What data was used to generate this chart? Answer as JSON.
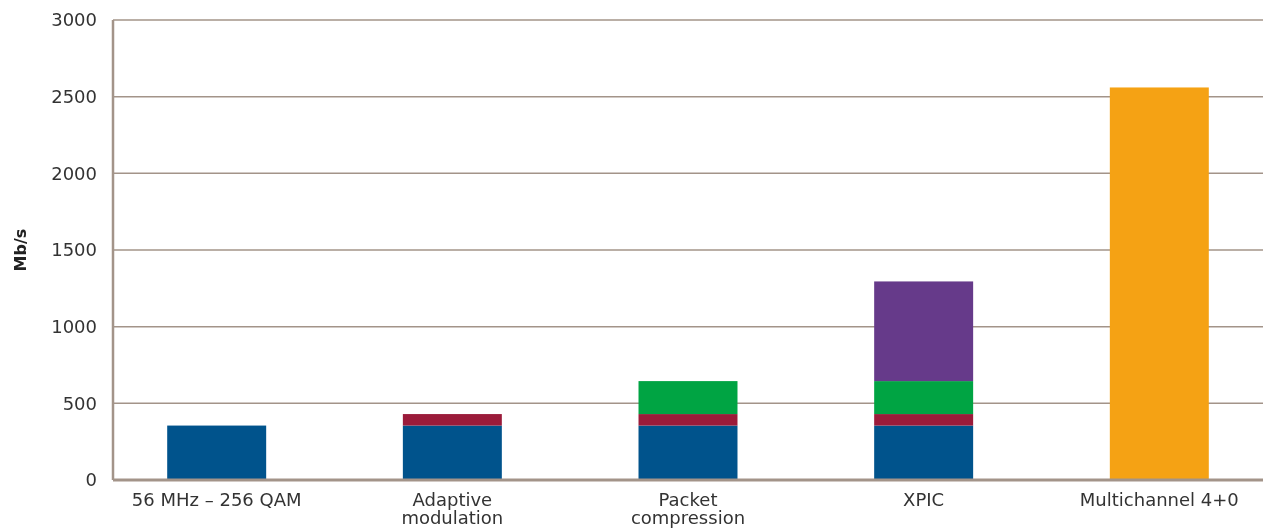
{
  "chart_data": {
    "type": "bar",
    "stacked": true,
    "ylabel": "Mb/s",
    "categories": [
      "56 MHz – 256 QAM",
      "Adaptive modulation",
      "Packet compression",
      "XPIC",
      "Multichannel 4+0"
    ],
    "series": [
      {
        "color": "#00538c",
        "values": [
          355,
          355,
          355,
          355,
          null
        ]
      },
      {
        "color": "#9b1b3a",
        "values": [
          null,
          75,
          75,
          75,
          null
        ]
      },
      {
        "color": "#00a443",
        "values": [
          null,
          null,
          215,
          215,
          null
        ]
      },
      {
        "color": "#663a8a",
        "values": [
          null,
          null,
          null,
          650,
          null
        ]
      },
      {
        "color": "#f5a214",
        "values": [
          null,
          null,
          null,
          null,
          2560
        ]
      }
    ],
    "ylim": [
      0,
      3000
    ],
    "yticks": [
      0,
      500,
      1000,
      1500,
      2000,
      2500,
      3000
    ],
    "grid": "y"
  }
}
